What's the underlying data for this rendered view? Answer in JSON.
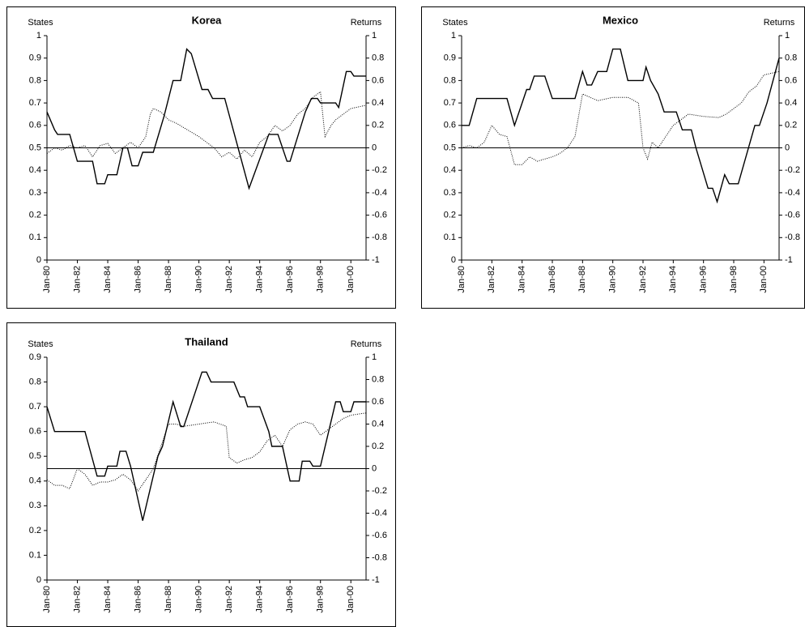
{
  "chart_data": [
    {
      "type": "line",
      "title": "Korea",
      "ylabel": "States",
      "y2label": "Returns",
      "xlim": [
        1980,
        2001
      ],
      "ylim": [
        0,
        1
      ],
      "y2lim": [
        -1,
        1
      ],
      "xticks": [
        {
          "value": 1980,
          "label": "Jan-80"
        },
        {
          "value": 1982,
          "label": "Jan-82"
        },
        {
          "value": 1984,
          "label": "Jan-84"
        },
        {
          "value": 1986,
          "label": "Jan-86"
        },
        {
          "value": 1988,
          "label": "Jan-88"
        },
        {
          "value": 1990,
          "label": "Jan-90"
        },
        {
          "value": 1992,
          "label": "Jan-92"
        },
        {
          "value": 1994,
          "label": "Jan-94"
        },
        {
          "value": 1996,
          "label": "Jan-96"
        },
        {
          "value": 1998,
          "label": "Jan-98"
        },
        {
          "value": 2000,
          "label": "Jan-00"
        }
      ],
      "yticks": [
        0,
        0.1,
        0.2,
        0.3,
        0.4,
        0.5,
        0.6,
        0.7,
        0.8,
        0.9,
        1
      ],
      "y2ticks": [
        -1,
        -0.8,
        -0.6,
        -0.4,
        -0.2,
        0,
        0.2,
        0.4,
        0.6,
        0.8,
        1
      ],
      "series": [
        {
          "color": "#000000",
          "style": "solid",
          "axis": "y",
          "x": [
            1980,
            1980.5,
            1980.7,
            1981.5,
            1982,
            1983,
            1983.3,
            1983.8,
            1984,
            1984.6,
            1985,
            1985.3,
            1985.6,
            1986,
            1986.3,
            1987,
            1987.7,
            1988,
            1988.3,
            1988.8,
            1989.2,
            1989.5,
            1990.2,
            1990.6,
            1990.9,
            1991.7,
            1993.3,
            1994.6,
            1995.2,
            1995.8,
            1996,
            1997,
            1997.4,
            1997.8,
            1998,
            1999,
            1999.2,
            1999.7,
            2000,
            2000.2,
            2001
          ],
          "values": [
            0.66,
            0.58,
            0.56,
            0.56,
            0.44,
            0.44,
            0.34,
            0.34,
            0.38,
            0.38,
            0.5,
            0.5,
            0.42,
            0.42,
            0.48,
            0.48,
            0.64,
            0.72,
            0.8,
            0.8,
            0.94,
            0.92,
            0.76,
            0.76,
            0.72,
            0.72,
            0.32,
            0.56,
            0.56,
            0.44,
            0.44,
            0.66,
            0.72,
            0.72,
            0.7,
            0.7,
            0.68,
            0.84,
            0.84,
            0.82,
            0.82
          ]
        },
        {
          "color": "#000000",
          "style": "dotted",
          "axis": "y2",
          "x": [
            1980,
            1980.5,
            1981,
            1981.5,
            1982,
            1982.5,
            1983,
            1983.5,
            1984,
            1984.5,
            1985,
            1985.5,
            1986,
            1986.5,
            1986.8,
            1987,
            1987.5,
            1988,
            1988.5,
            1989,
            1990,
            1990.5,
            1991,
            1991.5,
            1992,
            1992.5,
            1993,
            1993.5,
            1994,
            1994.5,
            1995,
            1995.5,
            1996,
            1996.5,
            1997,
            1997.5,
            1998,
            1998.3,
            1998.7,
            1999,
            1999.5,
            2000,
            2001
          ],
          "values": [
            -0.05,
            0,
            -0.02,
            0.02,
            0,
            0.02,
            -0.08,
            0.02,
            0.04,
            -0.05,
            0,
            0.05,
            0,
            0.1,
            0.3,
            0.35,
            0.32,
            0.25,
            0.22,
            0.18,
            0.1,
            0.05,
            0,
            -0.08,
            -0.04,
            -0.1,
            -0.02,
            -0.08,
            0.05,
            0.1,
            0.2,
            0.15,
            0.2,
            0.3,
            0.35,
            0.45,
            0.5,
            0.1,
            0.2,
            0.25,
            0.3,
            0.35,
            0.38
          ]
        }
      ]
    },
    {
      "type": "line",
      "title": "Mexico",
      "ylabel": "States",
      "y2label": "Returns",
      "xlim": [
        1980,
        2001
      ],
      "ylim": [
        0,
        1
      ],
      "y2lim": [
        -1,
        1
      ],
      "xticks": [
        {
          "value": 1980,
          "label": "Jan-80"
        },
        {
          "value": 1982,
          "label": "Jan-82"
        },
        {
          "value": 1984,
          "label": "Jan-84"
        },
        {
          "value": 1986,
          "label": "Jan-86"
        },
        {
          "value": 1988,
          "label": "Jan-88"
        },
        {
          "value": 1990,
          "label": "Jan-90"
        },
        {
          "value": 1992,
          "label": "Jan-92"
        },
        {
          "value": 1994,
          "label": "Jan-94"
        },
        {
          "value": 1996,
          "label": "Jan-96"
        },
        {
          "value": 1998,
          "label": "Jan-98"
        },
        {
          "value": 2000,
          "label": "Jan-00"
        }
      ],
      "yticks": [
        0,
        0.1,
        0.2,
        0.3,
        0.4,
        0.5,
        0.6,
        0.7,
        0.8,
        0.9,
        1
      ],
      "y2ticks": [
        -1,
        -0.8,
        -0.6,
        -0.4,
        -0.2,
        0,
        0.2,
        0.4,
        0.6,
        0.8,
        1
      ],
      "series": [
        {
          "color": "#000000",
          "style": "solid",
          "axis": "y",
          "x": [
            1980,
            1980.5,
            1981,
            1983,
            1983.5,
            1984,
            1984.3,
            1984.5,
            1984.8,
            1985.5,
            1986,
            1987.5,
            1988,
            1988.3,
            1988.6,
            1989,
            1989.6,
            1990,
            1990.5,
            1991,
            1992,
            1992.2,
            1992.5,
            1993,
            1993.4,
            1994.2,
            1994.6,
            1995.2,
            1995.5,
            1996.3,
            1996.6,
            1996.9,
            1997.4,
            1997.7,
            1998.3,
            1999.4,
            1999.7,
            2000.2,
            2001
          ],
          "values": [
            0.6,
            0.6,
            0.72,
            0.72,
            0.6,
            0.7,
            0.76,
            0.76,
            0.82,
            0.82,
            0.72,
            0.72,
            0.84,
            0.78,
            0.78,
            0.84,
            0.84,
            0.94,
            0.94,
            0.8,
            0.8,
            0.86,
            0.8,
            0.74,
            0.66,
            0.66,
            0.58,
            0.58,
            0.5,
            0.32,
            0.32,
            0.26,
            0.38,
            0.34,
            0.34,
            0.6,
            0.6,
            0.7,
            0.9
          ]
        },
        {
          "color": "#000000",
          "style": "dotted",
          "axis": "y2",
          "x": [
            1980,
            1980.5,
            1981,
            1981.5,
            1982,
            1982.5,
            1983,
            1983.5,
            1984,
            1984.5,
            1985,
            1985.5,
            1986,
            1986.5,
            1987,
            1987.5,
            1988,
            1988.5,
            1989,
            1990,
            1991,
            1991.7,
            1992,
            1992.3,
            1992.6,
            1993,
            1993.5,
            1994,
            1994.5,
            1995,
            1996,
            1997,
            1997.5,
            1998,
            1998.5,
            1999,
            1999.5,
            2000,
            2001
          ],
          "values": [
            0,
            0.02,
            0,
            0.05,
            0.2,
            0.12,
            0.1,
            -0.15,
            -0.15,
            -0.08,
            -0.12,
            -0.1,
            -0.08,
            -0.05,
            0,
            0.1,
            0.48,
            0.45,
            0.42,
            0.45,
            0.45,
            0.4,
            0,
            -0.1,
            0.05,
            0,
            0.1,
            0.2,
            0.25,
            0.3,
            0.28,
            0.27,
            0.3,
            0.35,
            0.4,
            0.5,
            0.55,
            0.65,
            0.68
          ]
        }
      ]
    },
    {
      "type": "line",
      "title": "Thailand",
      "ylabel": "States",
      "y2label": "Returns",
      "xlim": [
        1980,
        2001
      ],
      "ylim": [
        0,
        0.9
      ],
      "y2lim": [
        -1,
        1
      ],
      "xticks": [
        {
          "value": 1980,
          "label": "Jan-80"
        },
        {
          "value": 1982,
          "label": "Jan-82"
        },
        {
          "value": 1984,
          "label": "Jan-84"
        },
        {
          "value": 1986,
          "label": "Jan-86"
        },
        {
          "value": 1988,
          "label": "Jan-88"
        },
        {
          "value": 1990,
          "label": "Jan-90"
        },
        {
          "value": 1992,
          "label": "Jan-92"
        },
        {
          "value": 1994,
          "label": "Jan-94"
        },
        {
          "value": 1996,
          "label": "Jan-96"
        },
        {
          "value": 1998,
          "label": "Jan-98"
        },
        {
          "value": 2000,
          "label": "Jan-00"
        }
      ],
      "yticks": [
        0,
        0.1,
        0.2,
        0.3,
        0.4,
        0.5,
        0.6,
        0.7,
        0.8,
        0.9
      ],
      "y2ticks": [
        -1,
        -0.8,
        -0.6,
        -0.4,
        -0.2,
        0,
        0.2,
        0.4,
        0.6,
        0.8,
        1
      ],
      "series": [
        {
          "color": "#000000",
          "style": "solid",
          "axis": "y",
          "x": [
            1980,
            1980.5,
            1982.5,
            1983.3,
            1983.8,
            1984,
            1984.6,
            1984.8,
            1985.2,
            1985.5,
            1986.3,
            1987.3,
            1987.6,
            1988.3,
            1988.8,
            1989,
            1990.2,
            1990.5,
            1990.8,
            1992.3,
            1992.7,
            1993,
            1993.2,
            1994,
            1994.6,
            1994.8,
            1995.5,
            1996,
            1996.6,
            1996.8,
            1997.3,
            1997.5,
            1998,
            1999,
            1999.3,
            1999.5,
            2000,
            2000.2,
            2001
          ],
          "values": [
            0.7,
            0.6,
            0.6,
            0.42,
            0.42,
            0.46,
            0.46,
            0.52,
            0.52,
            0.46,
            0.24,
            0.5,
            0.54,
            0.72,
            0.62,
            0.62,
            0.84,
            0.84,
            0.8,
            0.8,
            0.74,
            0.74,
            0.7,
            0.7,
            0.6,
            0.54,
            0.54,
            0.4,
            0.4,
            0.48,
            0.48,
            0.46,
            0.46,
            0.72,
            0.72,
            0.68,
            0.68,
            0.72,
            0.72
          ]
        },
        {
          "color": "#000000",
          "style": "dotted",
          "axis": "y2",
          "x": [
            1980,
            1980.5,
            1981,
            1981.5,
            1982,
            1982.5,
            1983,
            1983.5,
            1984,
            1984.5,
            1985,
            1985.5,
            1986,
            1986.5,
            1987,
            1987.5,
            1988,
            1988.5,
            1989,
            1990,
            1991,
            1991.8,
            1992,
            1992.5,
            1993,
            1993.5,
            1994,
            1994.5,
            1995,
            1995.5,
            1996,
            1996.5,
            1997,
            1997.5,
            1998,
            1998.5,
            1999,
            1999.5,
            2000,
            2001
          ],
          "values": [
            -0.1,
            -0.15,
            -0.15,
            -0.18,
            0,
            -0.05,
            -0.15,
            -0.12,
            -0.12,
            -0.1,
            -0.05,
            -0.1,
            -0.2,
            -0.1,
            0,
            0.2,
            0.4,
            0.4,
            0.38,
            0.4,
            0.42,
            0.38,
            0.1,
            0.05,
            0.08,
            0.1,
            0.15,
            0.25,
            0.3,
            0.2,
            0.35,
            0.4,
            0.42,
            0.4,
            0.3,
            0.35,
            0.4,
            0.45,
            0.48,
            0.5
          ]
        }
      ]
    }
  ]
}
